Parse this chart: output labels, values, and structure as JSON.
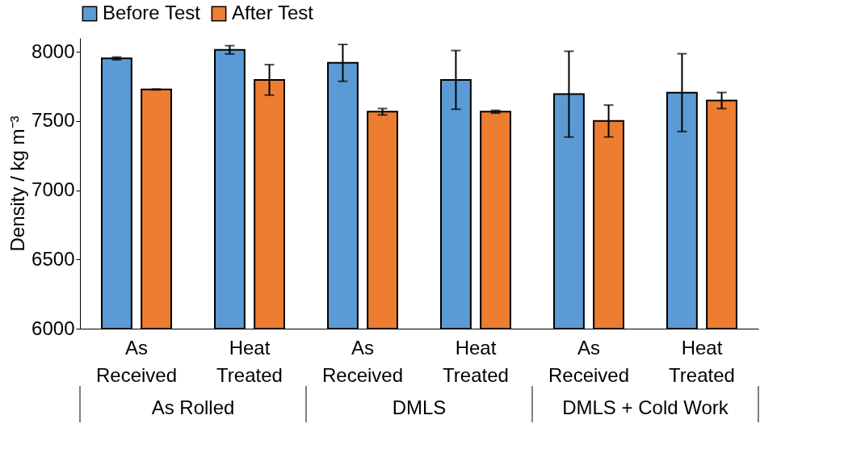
{
  "chart_data": {
    "type": "bar",
    "ylabel": "Density / kg m⁻³",
    "categories": [
      "As Received",
      "Heat Treated",
      "As Received",
      "Heat Treated",
      "As Received",
      "Heat Treated"
    ],
    "annotations": [
      "As Rolled",
      "DMLS",
      "DMLS + Cold Work"
    ],
    "series": [
      {
        "name": "Before Test",
        "color": "#5b9bd5",
        "values": [
          7952,
          8014,
          7920,
          7797,
          7694,
          7705
        ],
        "errors": [
          10,
          30,
          133,
          212,
          310,
          281
        ]
      },
      {
        "name": "After Test",
        "color": "#ed7d31",
        "values": [
          7728,
          7797,
          7567,
          7567,
          7500,
          7648
        ],
        "errors": [
          3,
          110,
          23,
          10,
          115,
          58
        ]
      }
    ],
    "ylim": [
      6000,
      8100
    ],
    "yticks": [
      6000,
      6500,
      7000,
      7500,
      8000
    ],
    "grid": false,
    "legend": "top"
  }
}
